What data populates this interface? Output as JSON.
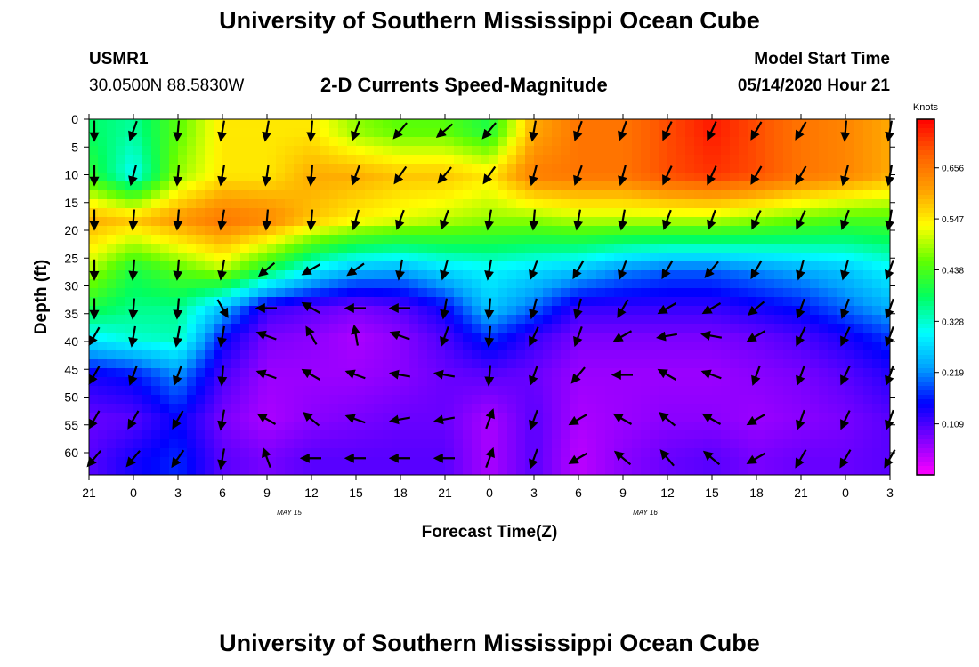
{
  "header": {
    "title": "University of Southern Mississippi Ocean Cube",
    "station_id": "USMR1",
    "station_position": "30.0500N 88.5830W",
    "model_start_label": "Model Start Time",
    "model_start_value": "05/14/2020 Hour 21"
  },
  "footer": {
    "title": "University of Southern Mississippi Ocean Cube"
  },
  "chart_data": {
    "type": "heatmap",
    "title": "2-D Currents Speed-Magnitude",
    "xlabel": "Forecast Time(Z)",
    "ylabel": "Depth (ft)",
    "x_ticks": [
      "21",
      "0",
      "3",
      "6",
      "9",
      "12",
      "15",
      "18",
      "21",
      "0",
      "3",
      "6",
      "9",
      "12",
      "15",
      "18",
      "21",
      "0",
      "3"
    ],
    "x_date_labels": [
      {
        "after_tick_index": 4,
        "text": "MAY 15"
      },
      {
        "after_tick_index": 12,
        "text": "MAY 16"
      }
    ],
    "x_range_hours": [
      0,
      54
    ],
    "y_ticks": [
      0,
      5,
      10,
      15,
      20,
      25,
      30,
      35,
      40,
      45,
      50,
      55,
      60
    ],
    "ylim": [
      0,
      64
    ],
    "y_inverted": true,
    "colorbar": {
      "label": "Knots",
      "ticks": [
        "0.109",
        "0.219",
        "0.328",
        "0.438",
        "0.547",
        "0.656"
      ],
      "range": [
        0.0,
        0.76
      ],
      "colors": [
        "#ff00ff",
        "#8000ff",
        "#0000ff",
        "#00a0ff",
        "#00ffff",
        "#00ff60",
        "#60ff00",
        "#ffff00",
        "#ffa000",
        "#ff6000",
        "#ff0000"
      ]
    },
    "speed_knots": [
      [
        0.38,
        0.35,
        0.45,
        0.55,
        0.55,
        0.55,
        0.48,
        0.45,
        0.45,
        0.4,
        0.6,
        0.66,
        0.66,
        0.7,
        0.74,
        0.7,
        0.66,
        0.64,
        0.6
      ],
      [
        0.42,
        0.3,
        0.48,
        0.55,
        0.55,
        0.6,
        0.6,
        0.58,
        0.58,
        0.55,
        0.65,
        0.66,
        0.66,
        0.7,
        0.72,
        0.7,
        0.66,
        0.64,
        0.6
      ],
      [
        0.6,
        0.58,
        0.62,
        0.66,
        0.64,
        0.58,
        0.54,
        0.52,
        0.5,
        0.48,
        0.48,
        0.5,
        0.5,
        0.5,
        0.5,
        0.48,
        0.46,
        0.44,
        0.44
      ],
      [
        0.5,
        0.4,
        0.45,
        0.5,
        0.4,
        0.3,
        0.25,
        0.24,
        0.28,
        0.3,
        0.28,
        0.26,
        0.22,
        0.2,
        0.2,
        0.22,
        0.24,
        0.26,
        0.3
      ],
      [
        0.4,
        0.36,
        0.36,
        0.25,
        0.12,
        0.1,
        0.08,
        0.1,
        0.15,
        0.26,
        0.2,
        0.12,
        0.12,
        0.12,
        0.12,
        0.14,
        0.16,
        0.2,
        0.24
      ],
      [
        0.3,
        0.33,
        0.34,
        0.16,
        0.08,
        0.07,
        0.05,
        0.07,
        0.11,
        0.18,
        0.12,
        0.08,
        0.08,
        0.08,
        0.08,
        0.09,
        0.11,
        0.14,
        0.18
      ],
      [
        0.14,
        0.16,
        0.22,
        0.11,
        0.06,
        0.06,
        0.06,
        0.07,
        0.09,
        0.1,
        0.09,
        0.06,
        0.06,
        0.06,
        0.06,
        0.07,
        0.08,
        0.1,
        0.13
      ],
      [
        0.09,
        0.1,
        0.15,
        0.08,
        0.05,
        0.07,
        0.08,
        0.09,
        0.09,
        0.05,
        0.1,
        0.05,
        0.06,
        0.07,
        0.07,
        0.06,
        0.07,
        0.08,
        0.1
      ],
      [
        0.1,
        0.14,
        0.17,
        0.1,
        0.08,
        0.1,
        0.1,
        0.1,
        0.1,
        0.05,
        0.1,
        0.04,
        0.07,
        0.09,
        0.1,
        0.08,
        0.09,
        0.09,
        0.1
      ]
    ],
    "vectors_note": "current direction arrows",
    "vector_rows_depth_ft": [
      2,
      10,
      18,
      27,
      34,
      39,
      46,
      54,
      61
    ],
    "vector_angles_deg": [
      [
        0,
        20,
        5,
        10,
        10,
        5,
        20,
        40,
        50,
        40,
        10,
        20,
        20,
        25,
        25,
        30,
        30,
        5,
        10
      ],
      [
        0,
        15,
        5,
        10,
        8,
        5,
        20,
        35,
        40,
        35,
        15,
        20,
        15,
        25,
        25,
        30,
        30,
        15,
        10
      ],
      [
        0,
        5,
        5,
        10,
        5,
        5,
        15,
        20,
        20,
        10,
        5,
        10,
        10,
        20,
        20,
        25,
        25,
        20,
        10
      ],
      [
        0,
        5,
        5,
        10,
        50,
        60,
        55,
        10,
        15,
        10,
        20,
        30,
        20,
        30,
        40,
        30,
        15,
        15,
        20
      ],
      [
        0,
        5,
        5,
        -30,
        90,
        120,
        90,
        90,
        10,
        5,
        15,
        15,
        30,
        60,
        60,
        50,
        20,
        20,
        20
      ],
      [
        30,
        10,
        10,
        10,
        110,
        150,
        170,
        110,
        20,
        5,
        25,
        20,
        60,
        80,
        100,
        60,
        25,
        25,
        20
      ],
      [
        30,
        20,
        20,
        5,
        110,
        120,
        110,
        100,
        100,
        5,
        20,
        40,
        90,
        120,
        110,
        20,
        20,
        25,
        20
      ],
      [
        30,
        30,
        30,
        10,
        120,
        130,
        110,
        80,
        80,
        200,
        20,
        60,
        120,
        130,
        120,
        60,
        20,
        25,
        20
      ],
      [
        40,
        40,
        35,
        10,
        160,
        90,
        90,
        90,
        90,
        200,
        20,
        60,
        130,
        140,
        130,
        60,
        30,
        30,
        30
      ]
    ]
  }
}
